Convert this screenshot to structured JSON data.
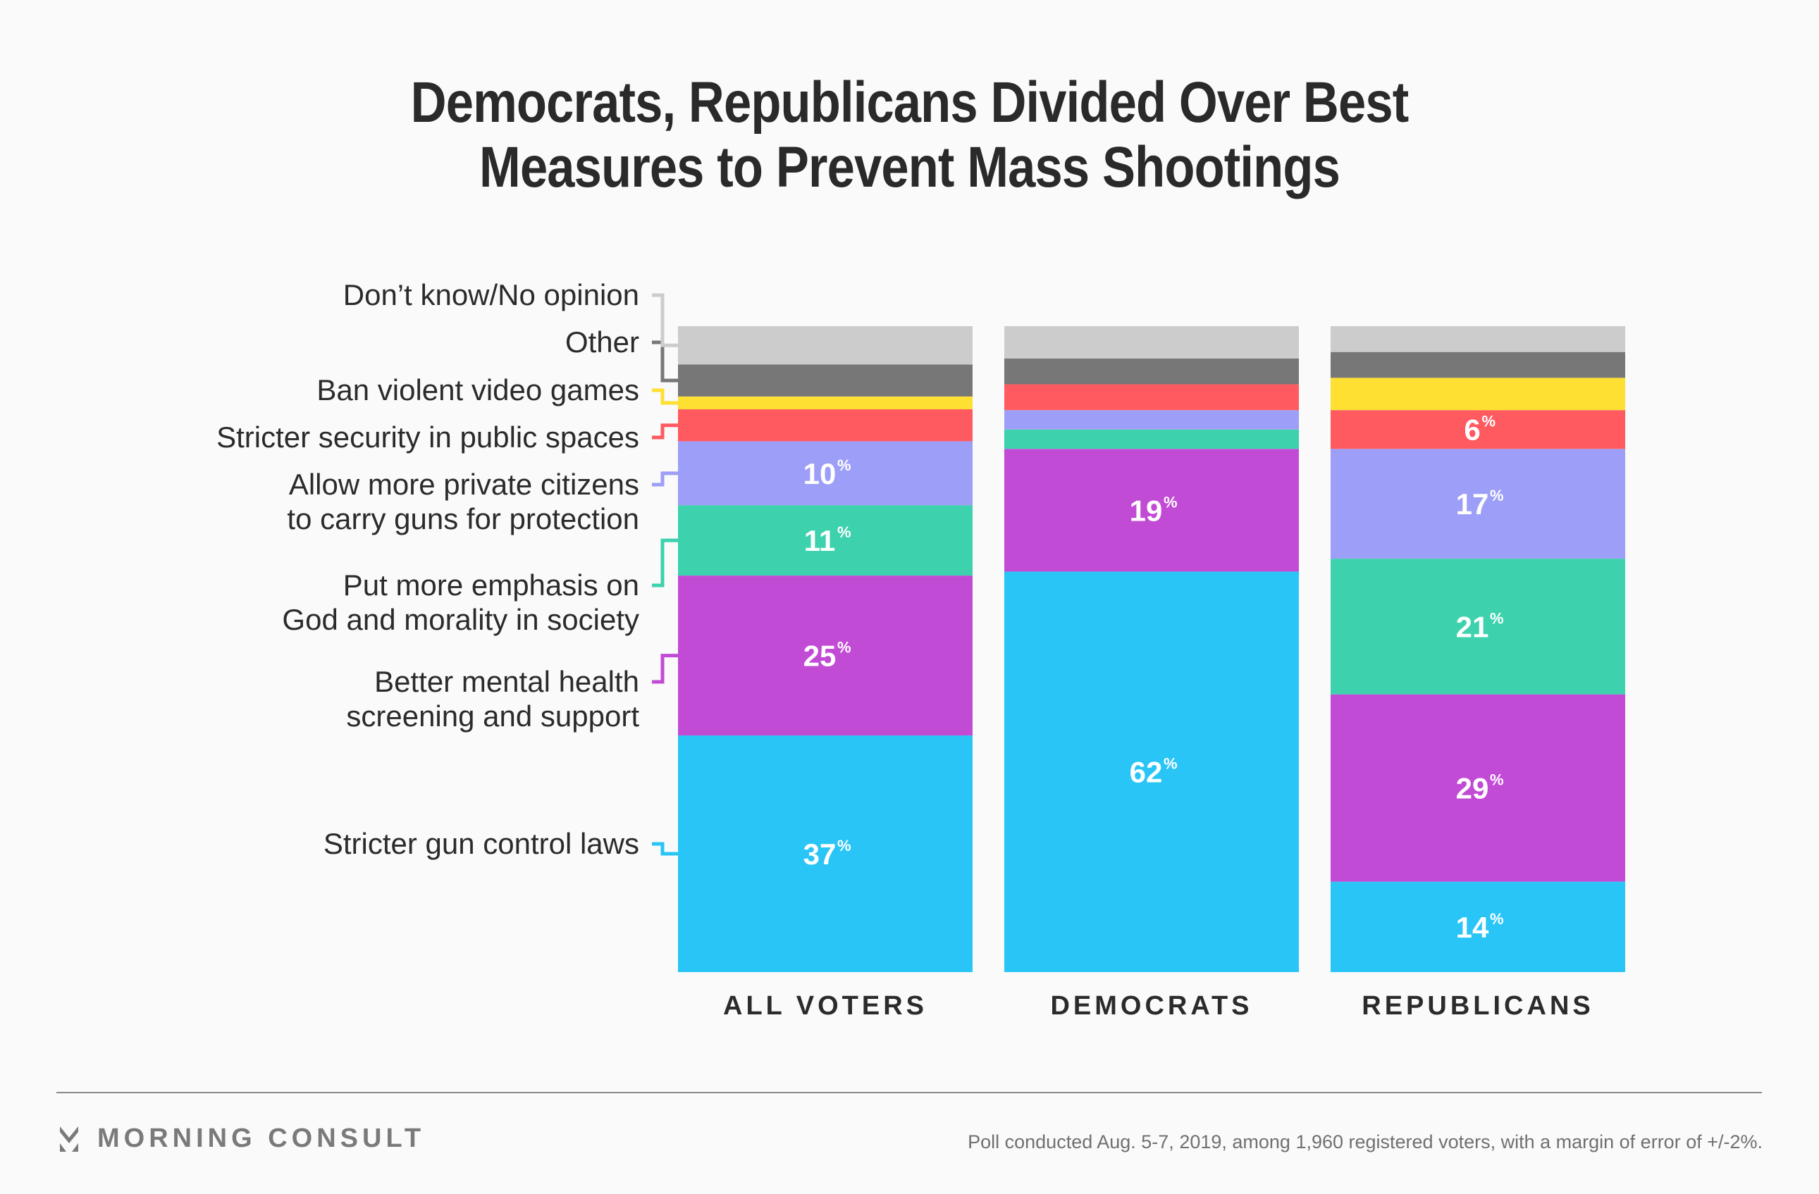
{
  "chart_data": {
    "type": "bar",
    "stacked": true,
    "title": "Democrats, Republicans Divided Over Best Measures to Prevent Mass Shootings",
    "title_lines": [
      "Democrats, Republicans Divided Over Best",
      "Measures to Prevent Mass Shootings"
    ],
    "categories": [
      "ALL VOTERS",
      "DEMOCRATS",
      "REPUBLICANS"
    ],
    "value_suffix": "%",
    "ylim": [
      0,
      100
    ],
    "legend_placement": "left",
    "series": [
      {
        "name": "Stricter gun control laws",
        "color": "#29c5f6",
        "values": [
          37,
          62,
          14
        ],
        "labeled": [
          true,
          true,
          true
        ]
      },
      {
        "name": "Better mental health screening and support",
        "color": "#c24bd6",
        "values": [
          25,
          19,
          29
        ],
        "labeled": [
          true,
          true,
          true
        ]
      },
      {
        "name": "Put more emphasis on God and morality in society",
        "color": "#3dd2ad",
        "values": [
          11,
          3,
          21
        ],
        "labeled": [
          true,
          false,
          true
        ]
      },
      {
        "name": "Allow more private citizens to carry guns for protection",
        "color": "#9d9ef7",
        "values": [
          10,
          3,
          17
        ],
        "labeled": [
          true,
          false,
          true
        ]
      },
      {
        "name": "Stricter security in public spaces",
        "color": "#ff5a60",
        "values": [
          5,
          4,
          6
        ],
        "labeled": [
          false,
          false,
          true
        ]
      },
      {
        "name": "Ban violent video games",
        "color": "#fde032",
        "values": [
          2,
          0,
          5
        ],
        "labeled": [
          false,
          false,
          false
        ]
      },
      {
        "name": "Other",
        "color": "#777777",
        "values": [
          5,
          4,
          4
        ],
        "labeled": [
          false,
          false,
          false
        ]
      },
      {
        "name": "Don’t know/No opinion",
        "color": "#cccccc",
        "values": [
          6,
          5,
          4
        ],
        "labeled": [
          false,
          false,
          false
        ]
      }
    ],
    "legend_lines": [
      [
        "Stricter gun control laws"
      ],
      [
        "Better mental health",
        "screening and support"
      ],
      [
        "Put more emphasis on",
        "God and morality in society"
      ],
      [
        "Allow more private citizens",
        "to carry guns for protection"
      ],
      [
        "Stricter security in public spaces"
      ],
      [
        "Ban violent video games"
      ],
      [
        "Other"
      ],
      [
        "Don’t know/No opinion"
      ]
    ]
  },
  "footer": {
    "brand": "MORNING CONSULT",
    "note": "Poll conducted Aug. 5-7, 2019, among 1,960 registered voters, with a margin of error of +/-2%."
  }
}
